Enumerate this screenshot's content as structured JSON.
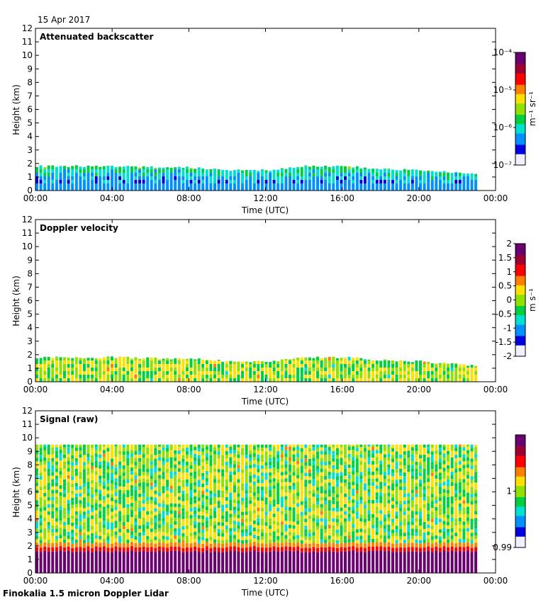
{
  "header": {
    "date": "15 Apr 2017"
  },
  "footer": {
    "instrument": "Finokalia 1.5 micron Doppler Lidar"
  },
  "colormap": [
    "#f0f0ff",
    "#0000e0",
    "#0090ff",
    "#00e0d0",
    "#00d040",
    "#90e000",
    "#ffe000",
    "#ff8000",
    "#ff0000",
    "#a00030",
    "#6a0070"
  ],
  "chart_data": [
    {
      "type": "heatmap",
      "title": "Attenuated backscatter",
      "xlabel": "Time (UTC)",
      "ylabel": "Height (km)",
      "xticks": [
        "00:00",
        "04:00",
        "08:00",
        "12:00",
        "16:00",
        "20:00",
        "00:00"
      ],
      "xlim_hours": [
        0,
        24
      ],
      "ylim": [
        0,
        12
      ],
      "yticks": [
        0,
        1,
        2,
        3,
        4,
        5,
        6,
        7,
        8,
        9,
        10,
        11,
        12
      ],
      "data_end_hour": 23.1,
      "top_km_by_hour": [
        [
          0,
          1.8
        ],
        [
          4,
          1.8
        ],
        [
          8,
          1.7
        ],
        [
          10,
          1.5
        ],
        [
          12,
          1.5
        ],
        [
          14,
          1.8
        ],
        [
          16,
          1.8
        ],
        [
          18,
          1.6
        ],
        [
          20,
          1.5
        ],
        [
          23,
          1.2
        ]
      ],
      "colorbar": {
        "unit": "m⁻¹ sr⁻¹",
        "scale": "log",
        "range": [
          1e-07,
          0.0001
        ],
        "tick_labels": [
          "10⁻⁷",
          "10⁻⁶",
          "10⁻⁵",
          "10⁻⁴"
        ]
      }
    },
    {
      "type": "heatmap",
      "title": "Doppler velocity",
      "xlabel": "Time (UTC)",
      "ylabel": "Height (km)",
      "xticks": [
        "00:00",
        "04:00",
        "08:00",
        "12:00",
        "16:00",
        "20:00",
        "00:00"
      ],
      "xlim_hours": [
        0,
        24
      ],
      "ylim": [
        0,
        12
      ],
      "yticks": [
        0,
        1,
        2,
        3,
        4,
        5,
        6,
        7,
        8,
        9,
        10,
        11,
        12
      ],
      "data_end_hour": 23.1,
      "top_km_by_hour": [
        [
          0,
          1.8
        ],
        [
          4,
          1.8
        ],
        [
          8,
          1.7
        ],
        [
          10,
          1.5
        ],
        [
          12,
          1.5
        ],
        [
          14,
          1.8
        ],
        [
          16,
          1.8
        ],
        [
          18,
          1.6
        ],
        [
          20,
          1.5
        ],
        [
          23,
          1.2
        ]
      ],
      "colorbar": {
        "unit": "m s⁻¹",
        "scale": "linear",
        "range": [
          -2,
          2
        ],
        "tick_labels": [
          "-2",
          "-1.5",
          "-1",
          "-0.5",
          "0",
          "0.5",
          "1",
          "1.5",
          "2"
        ]
      }
    },
    {
      "type": "heatmap",
      "title": "Signal (raw)",
      "xlabel": "Time (UTC)",
      "ylabel": "Height (km)",
      "xticks": [
        "00:00",
        "04:00",
        "08:00",
        "12:00",
        "16:00",
        "20:00",
        "00:00"
      ],
      "xlim_hours": [
        0,
        24
      ],
      "ylim": [
        0,
        12
      ],
      "yticks": [
        0,
        1,
        2,
        3,
        4,
        5,
        6,
        7,
        8,
        9,
        10,
        11,
        12
      ],
      "data_end_hour": 23.1,
      "signal_top_km": 9.5,
      "boundary_layer_km": 1.6,
      "colorbar": {
        "unit": "",
        "scale": "linear",
        "range": [
          0.99,
          1.01
        ],
        "tick_labels": [
          "0.99",
          "1"
        ]
      }
    }
  ]
}
